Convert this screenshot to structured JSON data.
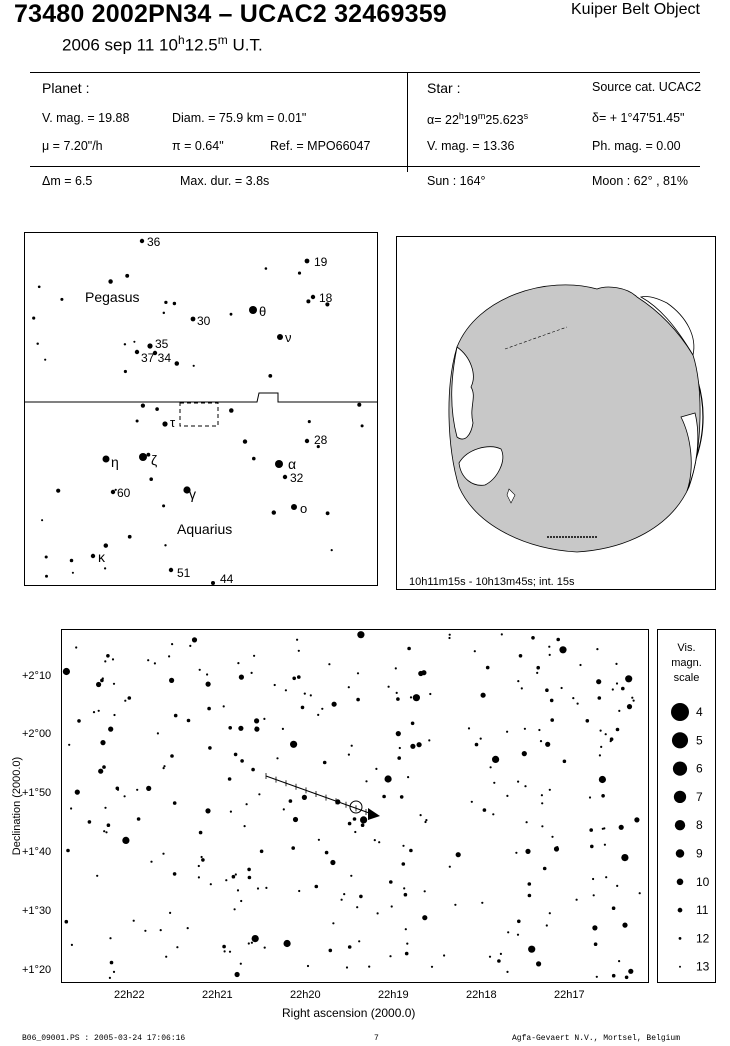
{
  "header": {
    "title": "73480 2002PN34  –  UCAC2 32469359",
    "object_type": "Kuiper Belt Object",
    "date_main": "2006 sep 11  10",
    "date_h": "h",
    "date_min": "12.5",
    "date_m": "m",
    "date_ut": " U.T."
  },
  "planet": {
    "heading": "Planet :",
    "vmag": "V. mag. = 19.88",
    "diam": "Diam. = 75.9 km = 0.01\"",
    "mu": "μ =  7.20\"/h",
    "pi": "π =  0.64\"",
    "ref": "Ref. = MPO66047"
  },
  "star": {
    "heading": "Star :",
    "source": "Source cat.  UCAC2",
    "alpha_pre": "α= 22",
    "alpha_h": "h",
    "alpha_mid": "19",
    "alpha_m": "m",
    "alpha_sec": "25.623",
    "alpha_s": "s",
    "delta": "δ= + 1°47'51.45\"",
    "vmag": "V. mag. = 13.36",
    "phmag": "Ph. mag. =  0.00"
  },
  "event": {
    "dm": "Δm = 6.5",
    "maxdur": "Max. dur. = 3.8s",
    "sun": "Sun : 164°",
    "moon": "Moon :  62° , 81%"
  },
  "finder": {
    "constellations": [
      "Pegasus",
      "Aquarius"
    ],
    "labels": {
      "s36": "36",
      "s19": "19",
      "s18": "18",
      "s30": "30",
      "theta": "θ",
      "nu": "ν",
      "s35": "35",
      "s37_34": "37 34",
      "tau": "τ",
      "s28": "28",
      "eta": "η",
      "zeta": "ζ",
      "alpha": "α",
      "s32": "32",
      "s60": "60",
      "gamma": "γ",
      "omicron": "o",
      "kappa": "κ",
      "s51": "51",
      "s44": "44"
    }
  },
  "globe": {
    "caption": "10h11m15s - 10h13m45s; int. 15s"
  },
  "chart": {
    "ylabel": "Declination (2000.0)",
    "xlabel": "Right ascension (2000.0)",
    "yticks": [
      "+2°10",
      "+2°00",
      "+1°50",
      "+1°40",
      "+1°30",
      "+1°20"
    ],
    "xticks": [
      "22h22",
      "22h21",
      "22h20",
      "22h19",
      "22h18",
      "22h17"
    ]
  },
  "legend": {
    "title1": "Vis.",
    "title2": "magn.",
    "title3": "scale",
    "mags": [
      "4",
      "5",
      "6",
      "7",
      "8",
      "9",
      "10",
      "11",
      "12",
      "13"
    ]
  },
  "footer": {
    "file": "B06_09001.PS : 2005-03-24 17:06:16",
    "page": "7",
    "org": "Agfa-Gevaert N.V., Mortsel, Belgium"
  }
}
